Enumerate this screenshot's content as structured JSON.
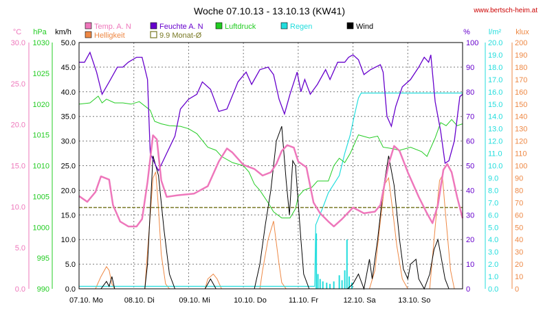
{
  "header": {
    "title": "Woche 07.10.13 - 13.10.13 (KW41)",
    "website": "www.bertsch-heim.at"
  },
  "colors": {
    "temp": "#ee77bb",
    "humidity": "#6600cc",
    "pressure": "#22cc22",
    "rain": "#22dddd",
    "wind": "#000000",
    "brightness": "#ee8844",
    "monthly_avg": "#777722",
    "website": "#cc0000",
    "grid": "#777777"
  },
  "chart_data": {
    "type": "line",
    "title": "Woche 07.10.13 - 13.10.13 (KW41)",
    "x_range_days": [
      0,
      7
    ],
    "x_ticks": [
      "07.10. Mo",
      "08.10. Di",
      "09.10. Mi",
      "10.10. Do",
      "11.10. Fr",
      "12.10. Sa",
      "13.10. So"
    ],
    "grid": true,
    "legend_position": "top",
    "legend": [
      {
        "key": "temp",
        "label": "Temp. A. N",
        "swatch": "filled"
      },
      {
        "key": "humidity",
        "label": "Feuchte A. N",
        "swatch": "filled"
      },
      {
        "key": "pressure",
        "label": "Luftdruck",
        "swatch": "filled"
      },
      {
        "key": "rain",
        "label": "Regen",
        "swatch": "filled"
      },
      {
        "key": "wind",
        "label": "Wind",
        "swatch": "filled"
      },
      {
        "key": "brightness",
        "label": "Helligkeit",
        "swatch": "filled"
      },
      {
        "key": "monthly_avg",
        "label": "9.9 Monat-Ø",
        "swatch": "outline"
      }
    ],
    "axes": {
      "temp": {
        "unit": "°C",
        "range": [
          0,
          30
        ],
        "ticks": [
          "0.0",
          "5.0",
          "10.0",
          "15.0",
          "20.0",
          "25.0",
          "30.0"
        ]
      },
      "pressure": {
        "unit": "hPa",
        "range": [
          990,
          1030
        ],
        "ticks": [
          "990",
          "995",
          "1000",
          "1005",
          "1010",
          "1015",
          "1020",
          "1025",
          "1030"
        ]
      },
      "wind": {
        "unit": "km/h",
        "range": [
          0,
          50
        ],
        "ticks": [
          "0.0",
          "5.0",
          "10.0",
          "15.0",
          "20.0",
          "25.0",
          "30.0",
          "35.0",
          "40.0",
          "45.0",
          "50.0"
        ]
      },
      "humidity": {
        "unit": "%",
        "range": [
          0,
          100
        ],
        "ticks": [
          "0",
          "10",
          "20",
          "30",
          "40",
          "50",
          "60",
          "70",
          "80",
          "90",
          "100"
        ]
      },
      "rain": {
        "unit": "l/m²",
        "range": [
          0,
          20
        ],
        "ticks": [
          "0.0",
          "1.0",
          "2.0",
          "3.0",
          "4.0",
          "5.0",
          "6.0",
          "7.0",
          "8.0",
          "9.0",
          "10.0",
          "11.0",
          "12.0",
          "13.0",
          "14.0",
          "15.0",
          "16.0",
          "17.0",
          "18.0",
          "19.0",
          "20.0"
        ]
      },
      "brightness": {
        "unit": "klux",
        "range": [
          0,
          200
        ],
        "ticks": [
          "0",
          "10",
          "20",
          "30",
          "40",
          "50",
          "60",
          "70",
          "80",
          "90",
          "100",
          "110",
          "120",
          "130",
          "140",
          "150",
          "160",
          "170",
          "180",
          "190",
          "200"
        ]
      }
    },
    "monthly_avg_temp": 9.9,
    "series": {
      "temp": [
        [
          0,
          11.3
        ],
        [
          0.15,
          10.6
        ],
        [
          0.3,
          11.8
        ],
        [
          0.4,
          13.7
        ],
        [
          0.55,
          13.3
        ],
        [
          0.62,
          10.2
        ],
        [
          0.75,
          8.2
        ],
        [
          0.9,
          7.6
        ],
        [
          1.05,
          7.6
        ],
        [
          1.15,
          8.5
        ],
        [
          1.25,
          13
        ],
        [
          1.35,
          18.7
        ],
        [
          1.42,
          18.2
        ],
        [
          1.5,
          13.2
        ],
        [
          1.6,
          11.2
        ],
        [
          1.8,
          11.4
        ],
        [
          2.1,
          11.6
        ],
        [
          2.35,
          12.5
        ],
        [
          2.55,
          15.5
        ],
        [
          2.7,
          17.1
        ],
        [
          2.8,
          16.6
        ],
        [
          3.0,
          15.1
        ],
        [
          3.2,
          14.6
        ],
        [
          3.35,
          13.8
        ],
        [
          3.5,
          14.2
        ],
        [
          3.6,
          15.2
        ],
        [
          3.7,
          16.8
        ],
        [
          3.8,
          17.5
        ],
        [
          3.92,
          17.2
        ],
        [
          4.0,
          15.5
        ],
        [
          4.15,
          14.8
        ],
        [
          4.28,
          10.5
        ],
        [
          4.4,
          9.2
        ],
        [
          4.55,
          8.2
        ],
        [
          4.65,
          7.6
        ],
        [
          4.8,
          8.5
        ],
        [
          5.0,
          9.9
        ],
        [
          5.2,
          9.2
        ],
        [
          5.4,
          9.4
        ],
        [
          5.5,
          10.2
        ],
        [
          5.65,
          15.2
        ],
        [
          5.75,
          17.4
        ],
        [
          5.85,
          16.8
        ],
        [
          6.0,
          14.2
        ],
        [
          6.2,
          11.2
        ],
        [
          6.35,
          9.2
        ],
        [
          6.45,
          8.0
        ],
        [
          6.55,
          10.2
        ],
        [
          6.65,
          14.5
        ],
        [
          6.72,
          15.2
        ],
        [
          6.8,
          14.2
        ],
        [
          6.9,
          11.2
        ],
        [
          7.0,
          8.6
        ]
      ],
      "humidity": [
        [
          0,
          92
        ],
        [
          0.1,
          92
        ],
        [
          0.2,
          96
        ],
        [
          0.32,
          88
        ],
        [
          0.42,
          79
        ],
        [
          0.55,
          84
        ],
        [
          0.7,
          90
        ],
        [
          0.8,
          90
        ],
        [
          0.9,
          92
        ],
        [
          1.05,
          94
        ],
        [
          1.15,
          94
        ],
        [
          1.25,
          85
        ],
        [
          1.3,
          55
        ],
        [
          1.38,
          51
        ],
        [
          1.45,
          48
        ],
        [
          1.6,
          55
        ],
        [
          1.75,
          62
        ],
        [
          1.85,
          73
        ],
        [
          2.0,
          77
        ],
        [
          2.15,
          79
        ],
        [
          2.25,
          84
        ],
        [
          2.4,
          81
        ],
        [
          2.55,
          72
        ],
        [
          2.7,
          73
        ],
        [
          2.9,
          84
        ],
        [
          3.05,
          88
        ],
        [
          3.15,
          83
        ],
        [
          3.3,
          89
        ],
        [
          3.45,
          90
        ],
        [
          3.55,
          87
        ],
        [
          3.65,
          77
        ],
        [
          3.75,
          71
        ],
        [
          3.85,
          79
        ],
        [
          3.98,
          88
        ],
        [
          4.05,
          80
        ],
        [
          4.12,
          85
        ],
        [
          4.22,
          79
        ],
        [
          4.35,
          83
        ],
        [
          4.5,
          89
        ],
        [
          4.58,
          85
        ],
        [
          4.72,
          92
        ],
        [
          4.85,
          92
        ],
        [
          4.92,
          94
        ],
        [
          5.0,
          95
        ],
        [
          5.1,
          93
        ],
        [
          5.2,
          87
        ],
        [
          5.32,
          89
        ],
        [
          5.5,
          91
        ],
        [
          5.55,
          88
        ],
        [
          5.62,
          70
        ],
        [
          5.7,
          66
        ],
        [
          5.78,
          74
        ],
        [
          5.9,
          82
        ],
        [
          6.05,
          85
        ],
        [
          6.2,
          90
        ],
        [
          6.3,
          94
        ],
        [
          6.38,
          92
        ],
        [
          6.42,
          95
        ],
        [
          6.5,
          76
        ],
        [
          6.6,
          64
        ],
        [
          6.68,
          51
        ],
        [
          6.75,
          52
        ],
        [
          6.85,
          60
        ],
        [
          6.95,
          78
        ],
        [
          7.0,
          79
        ]
      ],
      "pressure": [
        [
          0,
          1020
        ],
        [
          0.2,
          1020.2
        ],
        [
          0.35,
          1021.3
        ],
        [
          0.42,
          1020.2
        ],
        [
          0.5,
          1020.8
        ],
        [
          0.65,
          1020.2
        ],
        [
          0.8,
          1020.2
        ],
        [
          0.95,
          1020
        ],
        [
          1.1,
          1020.4
        ],
        [
          1.3,
          1019
        ],
        [
          1.38,
          1017.2
        ],
        [
          1.5,
          1016.8
        ],
        [
          1.65,
          1016.5
        ],
        [
          1.85,
          1016.4
        ],
        [
          2.0,
          1016
        ],
        [
          2.15,
          1015.2
        ],
        [
          2.35,
          1013
        ],
        [
          2.5,
          1012.5
        ],
        [
          2.6,
          1011.5
        ],
        [
          2.8,
          1010.5
        ],
        [
          3.0,
          1010
        ],
        [
          3.1,
          1009
        ],
        [
          3.2,
          1007
        ],
        [
          3.3,
          1006
        ],
        [
          3.45,
          1004
        ],
        [
          3.55,
          1002.5
        ],
        [
          3.7,
          1001.5
        ],
        [
          3.85,
          1001.5
        ],
        [
          3.95,
          1003
        ],
        [
          4.0,
          1005
        ],
        [
          4.1,
          1006
        ],
        [
          4.25,
          1006.5
        ],
        [
          4.35,
          1007.5
        ],
        [
          4.45,
          1007.5
        ],
        [
          4.55,
          1007.5
        ],
        [
          4.65,
          1010
        ],
        [
          4.75,
          1011.2
        ],
        [
          4.85,
          1010.5
        ],
        [
          4.95,
          1012
        ],
        [
          5.1,
          1015
        ],
        [
          5.3,
          1014.5
        ],
        [
          5.45,
          1014.8
        ],
        [
          5.55,
          1013
        ],
        [
          5.7,
          1012.8
        ],
        [
          5.85,
          1012.5
        ],
        [
          6.05,
          1013
        ],
        [
          6.25,
          1012.3
        ],
        [
          6.35,
          1011.5
        ],
        [
          6.5,
          1014.5
        ],
        [
          6.6,
          1017
        ],
        [
          6.7,
          1016.5
        ],
        [
          6.8,
          1017.5
        ],
        [
          6.9,
          1016.5
        ],
        [
          7.0,
          1016.8
        ]
      ],
      "rain_total": [
        [
          0,
          0.2
        ],
        [
          4.3,
          0.2
        ],
        [
          4.32,
          5.2
        ],
        [
          4.45,
          6.6
        ],
        [
          4.55,
          7.8
        ],
        [
          4.65,
          8.5
        ],
        [
          4.75,
          9.2
        ],
        [
          4.85,
          11
        ],
        [
          4.95,
          12.5
        ],
        [
          5.02,
          14
        ],
        [
          5.1,
          15.5
        ],
        [
          5.15,
          15.9
        ],
        [
          7.0,
          15.9
        ]
      ],
      "rain_bars": [
        [
          4.33,
          4.5
        ],
        [
          4.36,
          1.2
        ],
        [
          4.4,
          0.8
        ],
        [
          4.45,
          0.6
        ],
        [
          4.52,
          0.5
        ],
        [
          4.58,
          0.4
        ],
        [
          4.65,
          0.6
        ],
        [
          4.75,
          1.1
        ],
        [
          4.8,
          0.7
        ],
        [
          4.85,
          1.5
        ],
        [
          4.89,
          4.0
        ],
        [
          4.93,
          1.0
        ],
        [
          4.98,
          0.5
        ]
      ],
      "wind": [
        [
          0,
          0
        ],
        [
          0.4,
          0
        ],
        [
          0.5,
          1.5
        ],
        [
          0.55,
          0.5
        ],
        [
          0.6,
          2.5
        ],
        [
          0.65,
          0
        ],
        [
          1.2,
          0
        ],
        [
          1.25,
          5
        ],
        [
          1.3,
          16
        ],
        [
          1.35,
          27
        ],
        [
          1.45,
          23
        ],
        [
          1.55,
          12
        ],
        [
          1.65,
          3
        ],
        [
          1.75,
          0
        ],
        [
          2.3,
          0
        ],
        [
          2.4,
          2
        ],
        [
          2.5,
          0
        ],
        [
          3.2,
          0
        ],
        [
          3.3,
          5
        ],
        [
          3.4,
          13
        ],
        [
          3.5,
          20
        ],
        [
          3.6,
          30
        ],
        [
          3.7,
          33
        ],
        [
          3.78,
          22
        ],
        [
          3.84,
          15
        ],
        [
          3.9,
          26
        ],
        [
          3.95,
          25
        ],
        [
          4.05,
          10
        ],
        [
          4.1,
          3
        ],
        [
          4.2,
          0
        ],
        [
          4.9,
          0
        ],
        [
          5.0,
          1
        ],
        [
          5.1,
          3
        ],
        [
          5.2,
          0
        ],
        [
          5.3,
          6
        ],
        [
          5.35,
          2
        ],
        [
          5.45,
          10
        ],
        [
          5.55,
          20
        ],
        [
          5.65,
          27
        ],
        [
          5.75,
          21
        ],
        [
          5.85,
          10
        ],
        [
          5.92,
          4
        ],
        [
          6.0,
          2
        ],
        [
          6.05,
          5
        ],
        [
          6.15,
          6
        ],
        [
          6.2,
          2
        ],
        [
          6.3,
          0
        ],
        [
          6.4,
          3
        ],
        [
          6.48,
          8
        ],
        [
          6.55,
          10
        ],
        [
          6.6,
          7
        ],
        [
          6.68,
          2
        ],
        [
          6.75,
          0
        ],
        [
          7.0,
          0
        ]
      ],
      "brightness": [
        [
          0,
          0
        ],
        [
          0.3,
          0
        ],
        [
          0.4,
          10
        ],
        [
          0.5,
          18
        ],
        [
          0.55,
          15
        ],
        [
          0.6,
          4
        ],
        [
          0.65,
          0
        ],
        [
          1.2,
          0
        ],
        [
          1.25,
          30
        ],
        [
          1.3,
          60
        ],
        [
          1.35,
          90
        ],
        [
          1.4,
          95
        ],
        [
          1.45,
          65
        ],
        [
          1.5,
          28
        ],
        [
          1.58,
          4
        ],
        [
          1.65,
          0
        ],
        [
          2.3,
          0
        ],
        [
          2.35,
          8
        ],
        [
          2.45,
          12
        ],
        [
          2.52,
          8
        ],
        [
          2.6,
          0
        ],
        [
          3.3,
          0
        ],
        [
          3.35,
          15
        ],
        [
          3.45,
          40
        ],
        [
          3.55,
          55
        ],
        [
          3.65,
          20
        ],
        [
          3.7,
          5
        ],
        [
          3.78,
          0
        ],
        [
          4.5,
          0
        ],
        [
          5.3,
          0
        ],
        [
          5.4,
          15
        ],
        [
          5.5,
          55
        ],
        [
          5.58,
          85
        ],
        [
          5.65,
          90
        ],
        [
          5.72,
          65
        ],
        [
          5.8,
          35
        ],
        [
          5.9,
          8
        ],
        [
          6.0,
          0
        ],
        [
          6.4,
          0
        ],
        [
          6.5,
          50
        ],
        [
          6.58,
          88
        ],
        [
          6.63,
          92
        ],
        [
          6.7,
          55
        ],
        [
          6.78,
          15
        ],
        [
          6.85,
          0
        ],
        [
          7.0,
          0
        ]
      ]
    }
  }
}
